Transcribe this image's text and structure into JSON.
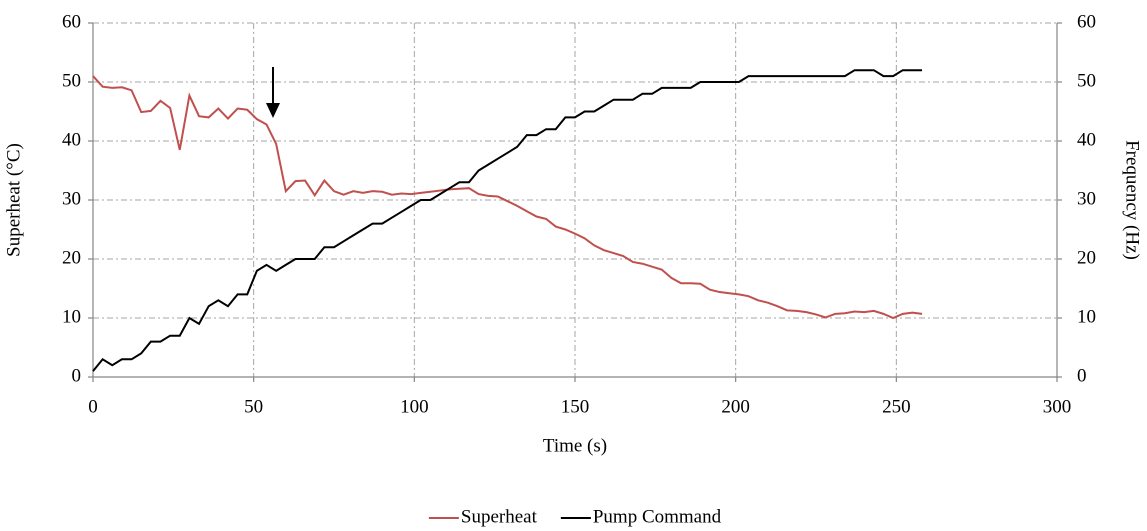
{
  "chart_data": {
    "type": "line",
    "xlabel": "Time (s)",
    "ylabel": "Superheat (°C)",
    "y2label": "Frequency (Hz)",
    "x": [
      0,
      3,
      6,
      9,
      12,
      15,
      18,
      21,
      24,
      27,
      30,
      33,
      36,
      39,
      42,
      45,
      48,
      51,
      54,
      57,
      60,
      63,
      66,
      69,
      72,
      75,
      78,
      81,
      84,
      87,
      90,
      93,
      96,
      99,
      102,
      105,
      108,
      111,
      114,
      117,
      120,
      123,
      126,
      129,
      132,
      135,
      138,
      141,
      144,
      147,
      150,
      153,
      156,
      159,
      162,
      165,
      168,
      171,
      174,
      177,
      180,
      183,
      186,
      189,
      192,
      195,
      198,
      201,
      204,
      207,
      210,
      213,
      216,
      219,
      222,
      225,
      228,
      231,
      234,
      237,
      240,
      243,
      246,
      249,
      252,
      255,
      258
    ],
    "series": [
      {
        "name": "Superheat",
        "color": "#c0504d",
        "axis": "y",
        "values": [
          51,
          49.2,
          49,
          49.1,
          48.6,
          44.9,
          45.1,
          46.8,
          45.6,
          38.5,
          47.7,
          44.2,
          44,
          45.5,
          43.8,
          45.5,
          45.3,
          43.7,
          42.8,
          39.5,
          31.5,
          33.2,
          33.3,
          30.8,
          33.3,
          31.5,
          30.9,
          31.5,
          31.2,
          31.5,
          31.4,
          30.9,
          31.1,
          31,
          31.2,
          31.4,
          31.6,
          31.8,
          31.9,
          32,
          31,
          30.7,
          30.6,
          29.8,
          29,
          28.1,
          27.2,
          26.8,
          25.5,
          25,
          24.3,
          23.5,
          22.3,
          21.5,
          21,
          20.5,
          19.5,
          19.2,
          18.7,
          18.2,
          16.8,
          15.9,
          15.9,
          15.8,
          14.8,
          14.4,
          14.2,
          14,
          13.7,
          13,
          12.6,
          12,
          11.3,
          11.2,
          11,
          10.6,
          10.1,
          10.7,
          10.8,
          11.1,
          11,
          11.2,
          10.7,
          10,
          10.7,
          10.9,
          10.7
        ]
      },
      {
        "name": "Pump Command",
        "color": "#000000",
        "axis": "y2",
        "values": [
          1,
          3,
          2,
          3,
          3,
          4,
          6,
          6,
          7,
          7,
          10,
          9,
          12,
          13,
          12,
          14,
          14,
          18,
          19,
          18,
          19,
          20,
          20,
          20,
          22,
          22,
          23,
          24,
          25,
          26,
          26,
          27,
          28,
          29,
          30,
          30,
          31,
          32,
          33,
          33,
          35,
          36,
          37,
          38,
          39,
          41,
          41,
          42,
          42,
          44,
          44,
          45,
          45,
          46,
          47,
          47,
          47,
          48,
          48,
          49,
          49,
          49,
          49,
          50,
          50,
          50,
          50,
          50,
          51,
          51,
          51,
          51,
          51,
          51,
          51,
          51,
          51,
          51,
          51,
          52,
          52,
          52,
          51,
          51,
          52,
          52,
          52
        ]
      }
    ],
    "xlim": [
      0,
      300
    ],
    "xticks": [
      0,
      50,
      100,
      150,
      200,
      250,
      300
    ],
    "ylim": [
      0,
      60
    ],
    "yticks": [
      0,
      10,
      20,
      30,
      40,
      50,
      60
    ],
    "y2lim": [
      0,
      60
    ],
    "y2ticks": [
      0,
      10,
      20,
      30,
      40,
      50,
      60
    ],
    "grid": true,
    "legend": "bottom"
  }
}
